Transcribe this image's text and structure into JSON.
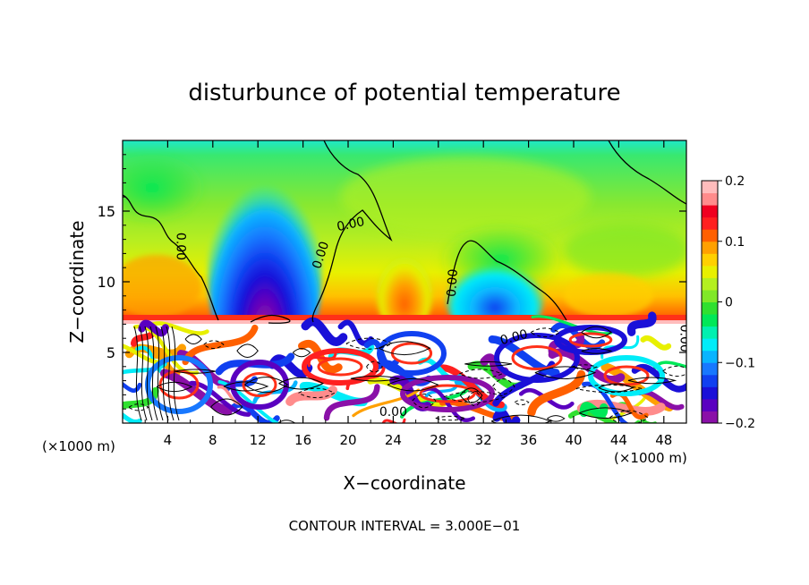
{
  "chart_data": {
    "type": "heatmap",
    "title": "disturbunce of potential temperature",
    "xlabel": "X−coordinate",
    "ylabel": "Z−coordinate",
    "x_unit_left": "(×1000 m)",
    "x_unit_right": "(×1000 m)",
    "footer": "CONTOUR INTERVAL = 3.000E−01",
    "xlim": [
      0,
      50
    ],
    "ylim": [
      0,
      20
    ],
    "x_ticks": [
      4,
      8,
      12,
      16,
      20,
      24,
      28,
      32,
      36,
      40,
      44,
      48
    ],
    "x_tick_labels": [
      "4",
      "8",
      "12",
      "16",
      "20",
      "24",
      "28",
      "32",
      "36",
      "40",
      "44",
      "48"
    ],
    "y_ticks": [
      5,
      10,
      15
    ],
    "y_tick_labels": [
      "5",
      "10",
      "15"
    ],
    "colorbar": {
      "range": [
        -0.2,
        0.2
      ],
      "ticks": [
        0.2,
        0.1,
        0,
        -0.1,
        -0.2
      ],
      "tick_labels": [
        "0.2",
        "0.1",
        "0",
        "−0.1",
        "−0.2"
      ],
      "colors": [
        "#8a10a8",
        "#5a00c0",
        "#1a10d8",
        "#1040f0",
        "#1878ff",
        "#08b4ff",
        "#00ecf8",
        "#00f0b0",
        "#00e858",
        "#30e030",
        "#80e828",
        "#b4f020",
        "#e8f000",
        "#ffd000",
        "#ffa000",
        "#ff6000",
        "#ff2020",
        "#f00020",
        "#ff8c8c",
        "#ffbcbc"
      ]
    },
    "contour_labels": [
      {
        "text": "0.00",
        "x": 4.8,
        "z": 12.5,
        "rot": 90
      },
      {
        "text": "0.00",
        "x": 17.9,
        "z": 11.8,
        "rot": -72
      },
      {
        "text": "0.00",
        "x": 20.3,
        "z": 13.8,
        "rot": -12
      },
      {
        "text": "0.00",
        "x": 29.6,
        "z": 9.9,
        "rot": -86
      },
      {
        "text": "0.00",
        "x": 34.8,
        "z": 5.8,
        "rot": -15
      },
      {
        "text": "0.00",
        "x": 24.0,
        "z": 0.5,
        "rot": 0
      },
      {
        "text": "0.00",
        "x": 49.5,
        "z": 6.0,
        "rot": 90
      }
    ],
    "features": [
      {
        "kind": "cold-plume",
        "x": 12.8,
        "z_base": 7.5,
        "z_top": 17.5,
        "value_min": -0.2
      },
      {
        "kind": "warm-layer",
        "z": 7.6,
        "value_max": 0.2
      },
      {
        "kind": "cold-blob",
        "x": 33.5,
        "z": 8.2,
        "value_min": -0.12
      },
      {
        "kind": "warm-blob",
        "x": 24.5,
        "z": 9.0,
        "value_max": 0.12
      },
      {
        "kind": "turbulent-layer",
        "z_range": [
          0,
          7.2
        ]
      }
    ]
  }
}
